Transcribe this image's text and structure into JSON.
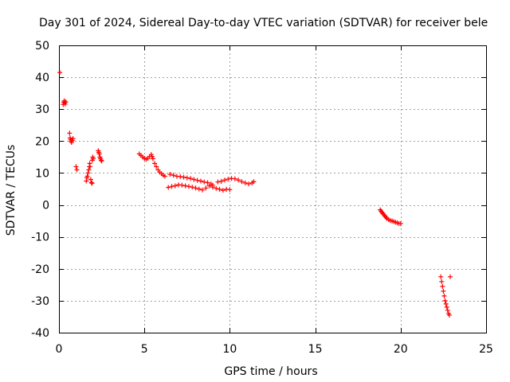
{
  "chart_data": {
    "type": "scatter",
    "title": "Day 301 of 2024, Sidereal Day-to-day VTEC variation (SDTVAR) for receiver bele",
    "xlabel": "GPS time / hours",
    "ylabel": "SDTVAR / TECUs",
    "xlim": [
      0,
      25
    ],
    "ylim": [
      -40,
      50
    ],
    "x_ticks": [
      0,
      5,
      10,
      15,
      20,
      25
    ],
    "y_ticks": [
      -40,
      -30,
      -20,
      -10,
      0,
      10,
      20,
      30,
      40,
      50
    ],
    "x_tick_labels": [
      "0",
      "5",
      "10",
      "15",
      "20",
      "25"
    ],
    "y_tick_labels": [
      "-40",
      "-30",
      "-20",
      "-10",
      "0",
      "10",
      "20",
      "30",
      "40",
      "50"
    ],
    "grid": true,
    "marker": "+",
    "marker_color": "#ff0000",
    "series": [
      {
        "name": "SDTVAR",
        "x": [
          0.05,
          0.25,
          0.28,
          0.31,
          0.33,
          0.36,
          0.4,
          0.62,
          0.65,
          0.68,
          0.71,
          0.74,
          0.78,
          0.82,
          1.0,
          1.05,
          1.6,
          1.63,
          1.66,
          1.7,
          1.74,
          1.78,
          1.8,
          1.82,
          1.86,
          1.9,
          1.94,
          1.95,
          1.98,
          2.0,
          2.3,
          2.33,
          2.36,
          2.4,
          2.43,
          2.47,
          2.5,
          4.7,
          4.8,
          4.9,
          5.0,
          5.1,
          5.2,
          5.3,
          5.4,
          5.45,
          5.5,
          5.6,
          5.7,
          5.8,
          5.9,
          6.0,
          6.1,
          6.2,
          6.5,
          6.7,
          6.9,
          7.1,
          7.3,
          7.5,
          7.7,
          7.9,
          8.1,
          8.3,
          8.5,
          8.7,
          8.9,
          9.0,
          6.4,
          6.6,
          6.8,
          7.0,
          7.2,
          7.4,
          7.6,
          7.8,
          8.0,
          8.2,
          8.4,
          8.6,
          8.8,
          9.0,
          9.2,
          9.4,
          9.6,
          9.8,
          10.0,
          9.3,
          9.5,
          9.7,
          9.9,
          10.1,
          10.3,
          10.5,
          10.7,
          10.9,
          11.1,
          11.3,
          11.4,
          18.8,
          18.85,
          18.9,
          18.95,
          19.0,
          19.05,
          19.1,
          19.15,
          19.2,
          19.3,
          19.4,
          19.5,
          19.6,
          19.7,
          19.8,
          19.9,
          20.0,
          22.35,
          22.4,
          22.45,
          22.5,
          22.55,
          22.6,
          22.65,
          22.7,
          22.75,
          22.8,
          22.85,
          22.9
        ],
        "y": [
          41.5,
          31.5,
          32.2,
          32.6,
          32.1,
          31.6,
          32.3,
          22.5,
          21,
          20.5,
          20,
          19.6,
          20.2,
          20.8,
          12,
          11,
          7.5,
          8.5,
          9,
          10,
          11,
          12,
          13,
          12,
          8,
          7,
          6.8,
          14,
          15,
          14.5,
          17,
          16.5,
          16,
          15,
          14.5,
          14,
          13.8,
          16,
          15.5,
          15,
          14.6,
          14.3,
          14.6,
          15.2,
          15.8,
          15.2,
          14.5,
          13,
          12,
          11,
          10.3,
          9.8,
          9.3,
          9.0,
          9.6,
          9.3,
          9.0,
          8.9,
          8.7,
          8.5,
          8.3,
          8.0,
          7.7,
          7.5,
          7.2,
          7.0,
          6.6,
          6.2,
          5.5,
          5.8,
          6.0,
          6.3,
          6.2,
          6.0,
          5.8,
          5.6,
          5.3,
          5.0,
          4.7,
          5.3,
          6.0,
          5.6,
          5.2,
          4.9,
          4.6,
          4.9,
          4.8,
          7.2,
          7.4,
          7.8,
          8.1,
          8.3,
          8.2,
          7.8,
          7.3,
          6.9,
          6.6,
          6.9,
          7.3,
          -1.5,
          -1.9,
          -2.3,
          -2.6,
          -2.9,
          -3.3,
          -3.6,
          -3.9,
          -4.3,
          -4.6,
          -4.9,
          -5.0,
          -5.2,
          -5.4,
          -5.6,
          -5.8,
          -5.8,
          -22.5,
          -24,
          -25.5,
          -27,
          -28.5,
          -30,
          -31,
          -32,
          -33,
          -34,
          -34.5,
          -22.5
        ]
      }
    ]
  }
}
